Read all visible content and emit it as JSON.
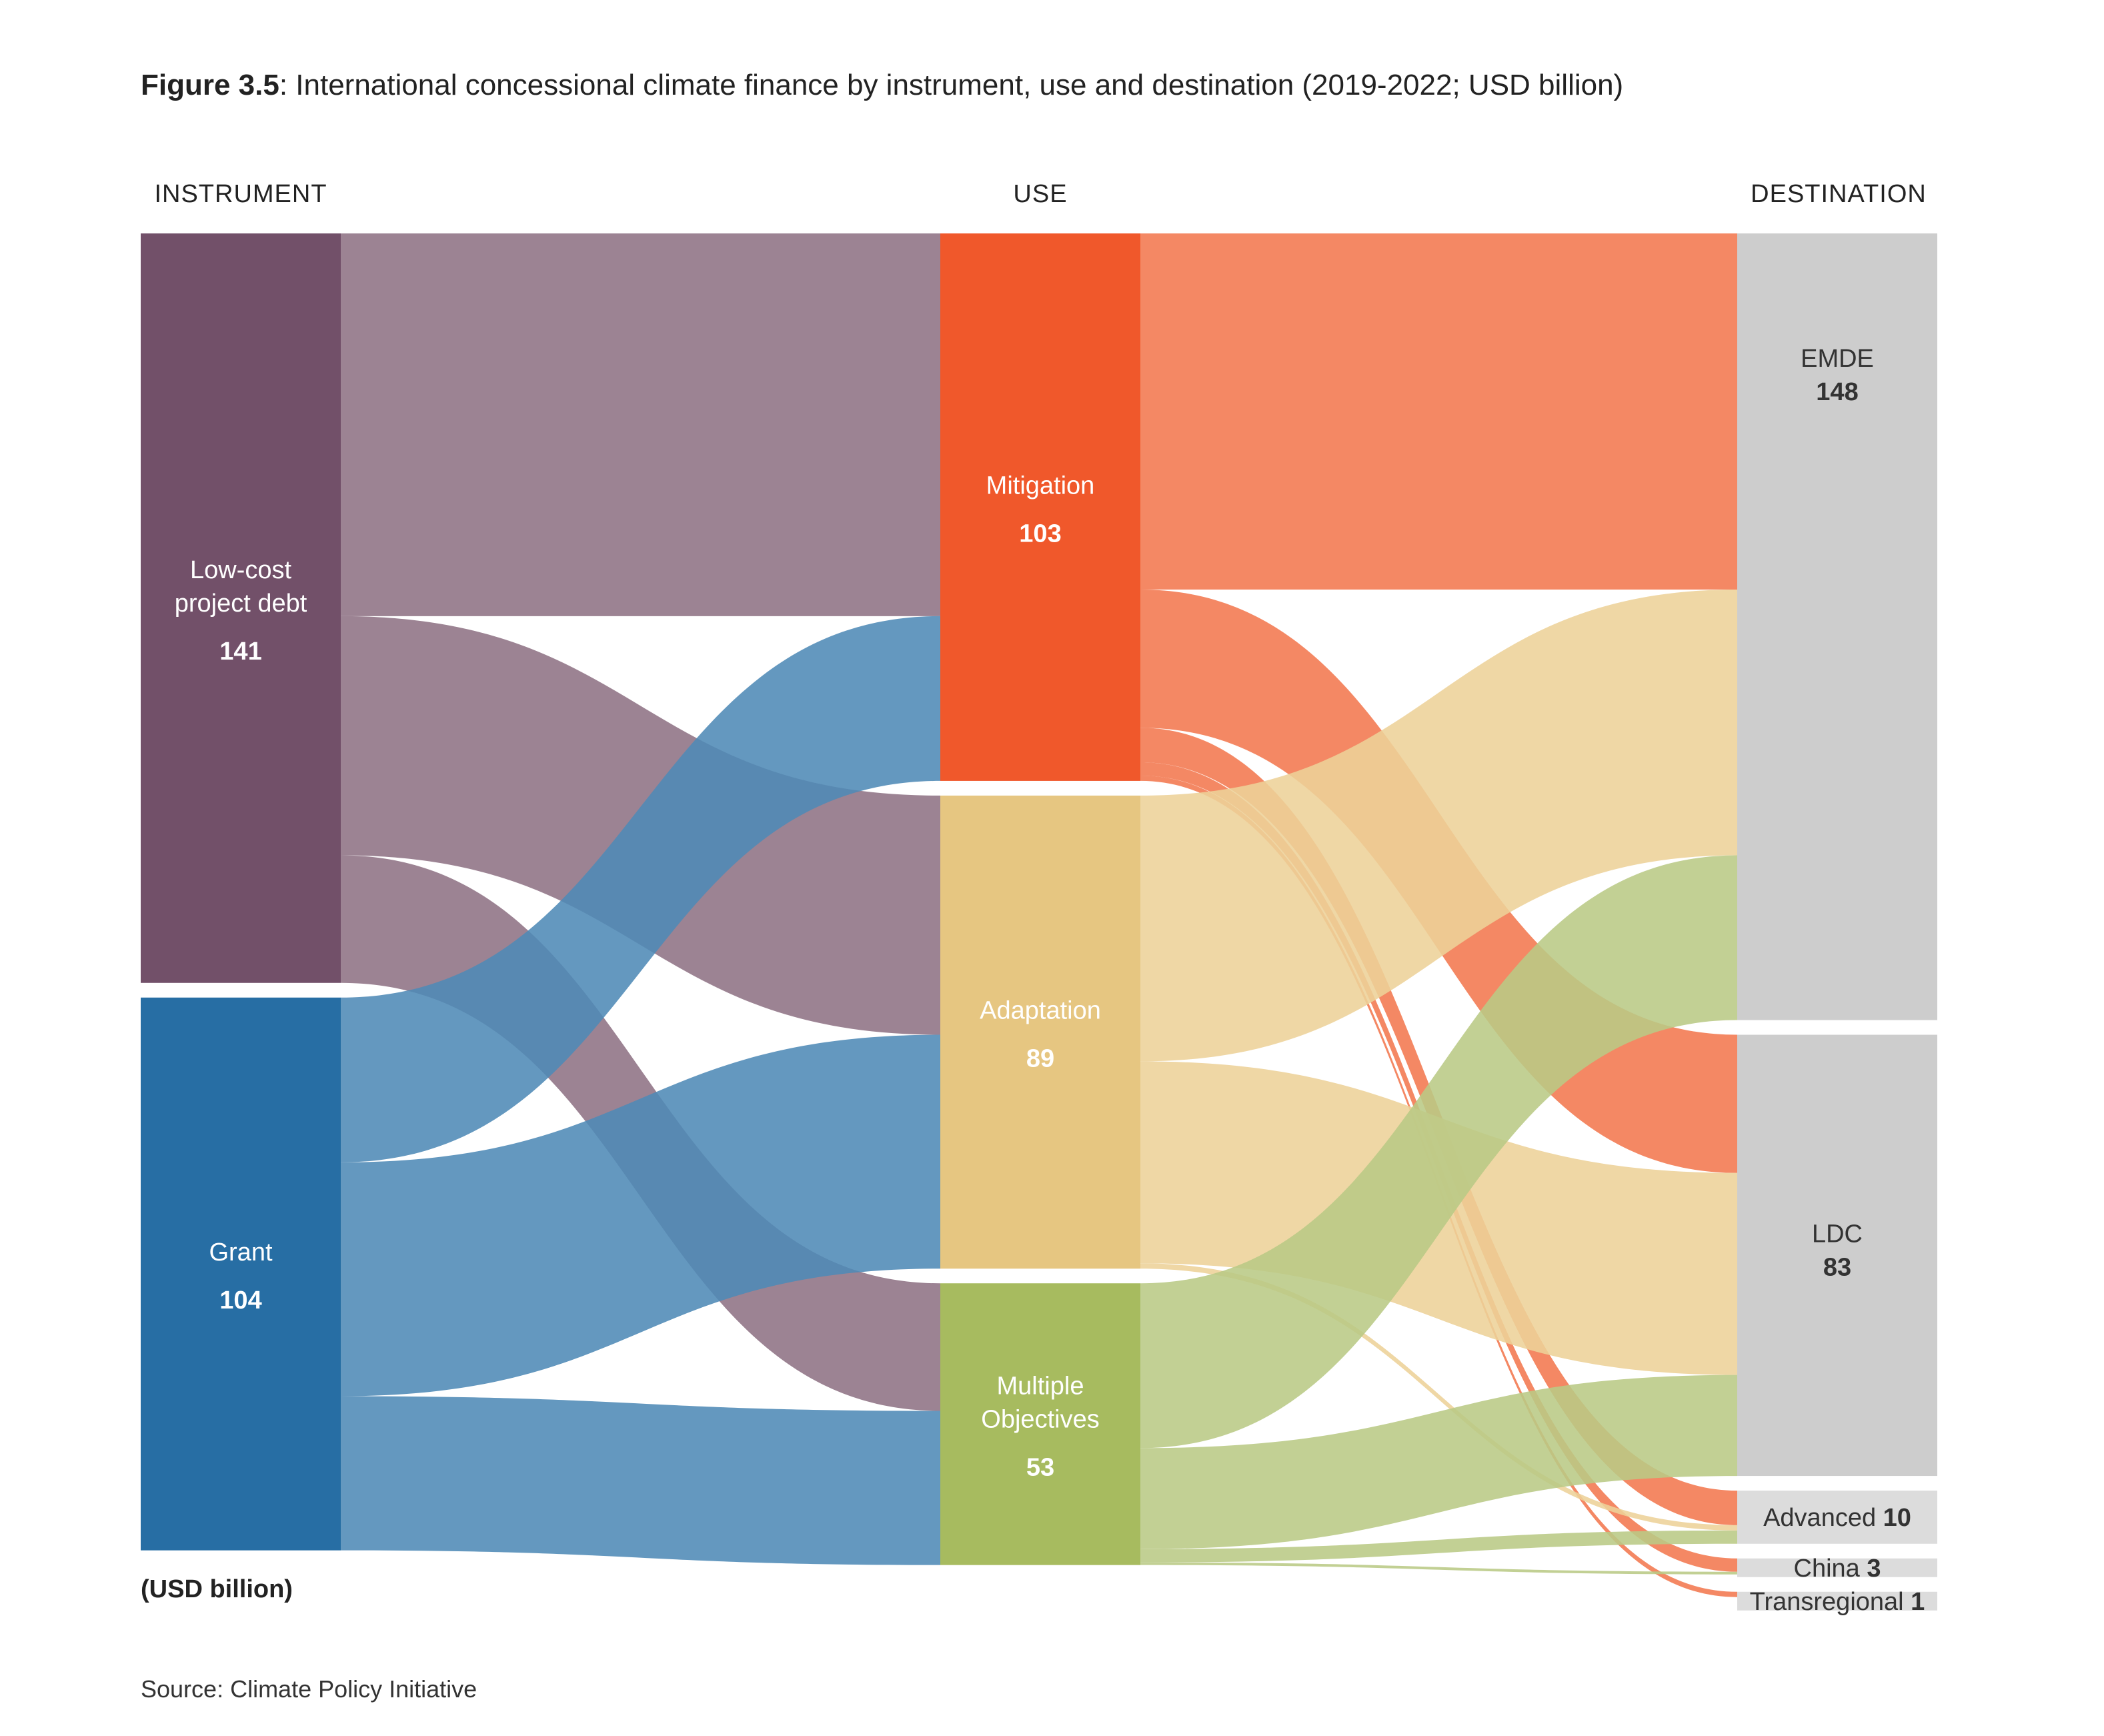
{
  "figure": {
    "number": "Figure 3.5",
    "caption": ": International concessional climate finance by instrument, use and destination (2019-2022; USD billion)",
    "unit_note": "(USD billion)",
    "source": "Source: Climate Policy Initiative"
  },
  "chart_data": {
    "type": "sankey",
    "columns": [
      "INSTRUMENT",
      "USE",
      "DESTINATION"
    ],
    "nodes": [
      {
        "id": "debt",
        "name": "Low-cost project debt",
        "lines": [
          "Low-cost",
          "project debt"
        ],
        "value": 141,
        "column": 0,
        "color": "#725069"
      },
      {
        "id": "grant",
        "name": "Grant",
        "lines": [
          "Grant"
        ],
        "value": 104,
        "column": 0,
        "color": "#276ea4"
      },
      {
        "id": "mit",
        "name": "Mitigation",
        "lines": [
          "Mitigation"
        ],
        "value": 103,
        "column": 1,
        "color": "#f0582b"
      },
      {
        "id": "ada",
        "name": "Adaptation",
        "lines": [
          "Adaptation"
        ],
        "value": 89,
        "column": 1,
        "color": "#e6c681"
      },
      {
        "id": "mo",
        "name": "Multiple Objectives",
        "lines": [
          "Multiple",
          "Objectives"
        ],
        "value": 53,
        "column": 1,
        "color": "#a7bb5f"
      },
      {
        "id": "emde",
        "name": "EMDE",
        "lines": [
          "EMDE"
        ],
        "value": 148,
        "column": 2,
        "color": "#cdcdcd"
      },
      {
        "id": "ldc",
        "name": "LDC",
        "lines": [
          "LDC"
        ],
        "value": 83,
        "column": 2,
        "color": "#cdcdcd"
      },
      {
        "id": "adv",
        "name": "Advanced",
        "lines": [
          "Advanced"
        ],
        "value": 10,
        "column": 2,
        "color": "#dcdcdc"
      },
      {
        "id": "chn",
        "name": "China",
        "lines": [
          "China"
        ],
        "value": 3,
        "column": 2,
        "color": "#dcdcdc"
      },
      {
        "id": "trans",
        "name": "Transregional",
        "lines": [
          "Transregional"
        ],
        "value": 1,
        "column": 2,
        "color": "#dcdcdc"
      }
    ],
    "links": [
      {
        "source": "debt",
        "target": "mit",
        "value": 72,
        "color": "#8e7284"
      },
      {
        "source": "debt",
        "target": "ada",
        "value": 45,
        "color": "#8e7284"
      },
      {
        "source": "debt",
        "target": "mo",
        "value": 24,
        "color": "#8e7284"
      },
      {
        "source": "grant",
        "target": "mit",
        "value": 31,
        "color": "#4f8ab6"
      },
      {
        "source": "grant",
        "target": "ada",
        "value": 44,
        "color": "#4f8ab6"
      },
      {
        "source": "grant",
        "target": "mo",
        "value": 29,
        "color": "#4f8ab6"
      },
      {
        "source": "mit",
        "target": "emde",
        "value": 67,
        "color": "#f3774f"
      },
      {
        "source": "mit",
        "target": "ldc",
        "value": 26,
        "color": "#f3774f"
      },
      {
        "source": "mit",
        "target": "adv",
        "value": 6.5,
        "color": "#f3774f"
      },
      {
        "source": "mit",
        "target": "chn",
        "value": 2.5,
        "color": "#f3774f"
      },
      {
        "source": "mit",
        "target": "trans",
        "value": 1,
        "color": "#f3774f"
      },
      {
        "source": "ada",
        "target": "emde",
        "value": 50,
        "color": "#edd298"
      },
      {
        "source": "ada",
        "target": "ldc",
        "value": 38,
        "color": "#edd298"
      },
      {
        "source": "ada",
        "target": "adv",
        "value": 1,
        "color": "#edd298"
      },
      {
        "source": "mo",
        "target": "emde",
        "value": 31,
        "color": "#b9ca85"
      },
      {
        "source": "mo",
        "target": "ldc",
        "value": 19,
        "color": "#b9ca85"
      },
      {
        "source": "mo",
        "target": "adv",
        "value": 2.5,
        "color": "#b9ca85"
      },
      {
        "source": "mo",
        "target": "chn",
        "value": 0.5,
        "color": "#b9ca85"
      }
    ],
    "node_text_colors": {
      "dark": "#ffffff",
      "light": "#333333"
    }
  }
}
